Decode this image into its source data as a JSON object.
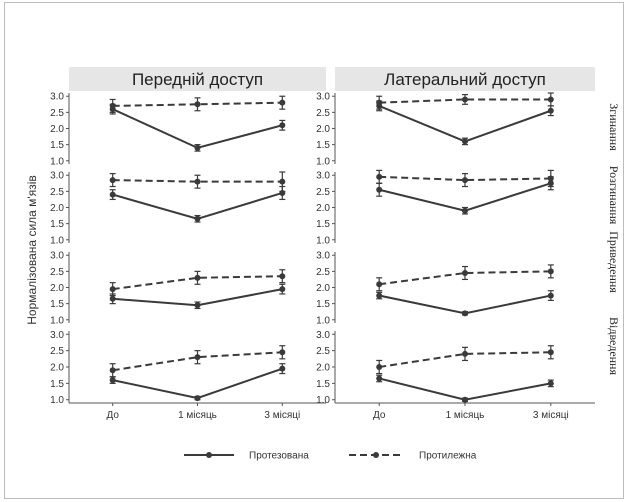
{
  "chart_data": {
    "type": "line",
    "ylabel": "Нормалізована сила м'язів",
    "x_categories": [
      "До",
      "1 місяць",
      "3 місяці"
    ],
    "y_ticks": [
      "1.0",
      "1.5",
      "2.0",
      "2.5",
      "3.0"
    ],
    "ylim": [
      0.9,
      3.1
    ],
    "grid": false,
    "legend_position": "bottom",
    "panel_titles": [
      "Передній доступ",
      "Латеральний доступ"
    ],
    "row_labels": [
      "Згинання",
      "Розгинання",
      "Приведення",
      "Відведення"
    ],
    "legend": [
      {
        "name": "Протезована",
        "style": "solid"
      },
      {
        "name": "Протилежна",
        "style": "dashed"
      }
    ],
    "panels": [
      {
        "column": "Передній доступ",
        "row": "Згинання",
        "series": [
          {
            "name": "Протезована",
            "values": [
              2.6,
              1.4,
              2.1
            ],
            "errors": [
              0.15,
              0.1,
              0.15
            ]
          },
          {
            "name": "Протилежна",
            "values": [
              2.7,
              2.75,
              2.8
            ],
            "errors": [
              0.2,
              0.2,
              0.2
            ]
          }
        ]
      },
      {
        "column": "Латеральний доступ",
        "row": "Згинання",
        "series": [
          {
            "name": "Протезована",
            "values": [
              2.7,
              1.6,
              2.55
            ],
            "errors": [
              0.15,
              0.1,
              0.15
            ]
          },
          {
            "name": "Протилежна",
            "values": [
              2.8,
              2.9,
              2.9
            ],
            "errors": [
              0.2,
              0.15,
              0.2
            ]
          }
        ]
      },
      {
        "column": "Передній доступ",
        "row": "Розгинання",
        "series": [
          {
            "name": "Протезована",
            "values": [
              2.4,
              1.65,
              2.45
            ],
            "errors": [
              0.15,
              0.1,
              0.2
            ]
          },
          {
            "name": "Протилежна",
            "values": [
              2.85,
              2.8,
              2.8
            ],
            "errors": [
              0.2,
              0.2,
              0.3
            ]
          }
        ]
      },
      {
        "column": "Латеральний доступ",
        "row": "Розгинання",
        "series": [
          {
            "name": "Протезована",
            "values": [
              2.55,
              1.9,
              2.75
            ],
            "errors": [
              0.2,
              0.1,
              0.2
            ]
          },
          {
            "name": "Протилежна",
            "values": [
              2.95,
              2.85,
              2.9
            ],
            "errors": [
              0.2,
              0.2,
              0.25
            ]
          }
        ]
      },
      {
        "column": "Передній доступ",
        "row": "Приведення",
        "series": [
          {
            "name": "Протезована",
            "values": [
              1.65,
              1.45,
              1.95
            ],
            "errors": [
              0.15,
              0.1,
              0.15
            ]
          },
          {
            "name": "Протилежна",
            "values": [
              1.95,
              2.3,
              2.35
            ],
            "errors": [
              0.2,
              0.2,
              0.2
            ]
          }
        ]
      },
      {
        "column": "Латеральний доступ",
        "row": "Приведення",
        "series": [
          {
            "name": "Протезована",
            "values": [
              1.75,
              1.2,
              1.75
            ],
            "errors": [
              0.1,
              0.05,
              0.15
            ]
          },
          {
            "name": "Протилежна",
            "values": [
              2.1,
              2.45,
              2.5
            ],
            "errors": [
              0.2,
              0.2,
              0.2
            ]
          }
        ]
      },
      {
        "column": "Передній доступ",
        "row": "Відведення",
        "series": [
          {
            "name": "Протезована",
            "values": [
              1.6,
              1.05,
              1.95
            ],
            "errors": [
              0.1,
              0.05,
              0.15
            ]
          },
          {
            "name": "Протилежна",
            "values": [
              1.9,
              2.3,
              2.45
            ],
            "errors": [
              0.2,
              0.2,
              0.2
            ]
          }
        ]
      },
      {
        "column": "Латеральний доступ",
        "row": "Відведення",
        "series": [
          {
            "name": "Протезована",
            "values": [
              1.65,
              1.0,
              1.5
            ],
            "errors": [
              0.1,
              0.05,
              0.1
            ]
          },
          {
            "name": "Протилежна",
            "values": [
              2.0,
              2.4,
              2.45
            ],
            "errors": [
              0.2,
              0.2,
              0.2
            ]
          }
        ]
      }
    ]
  }
}
